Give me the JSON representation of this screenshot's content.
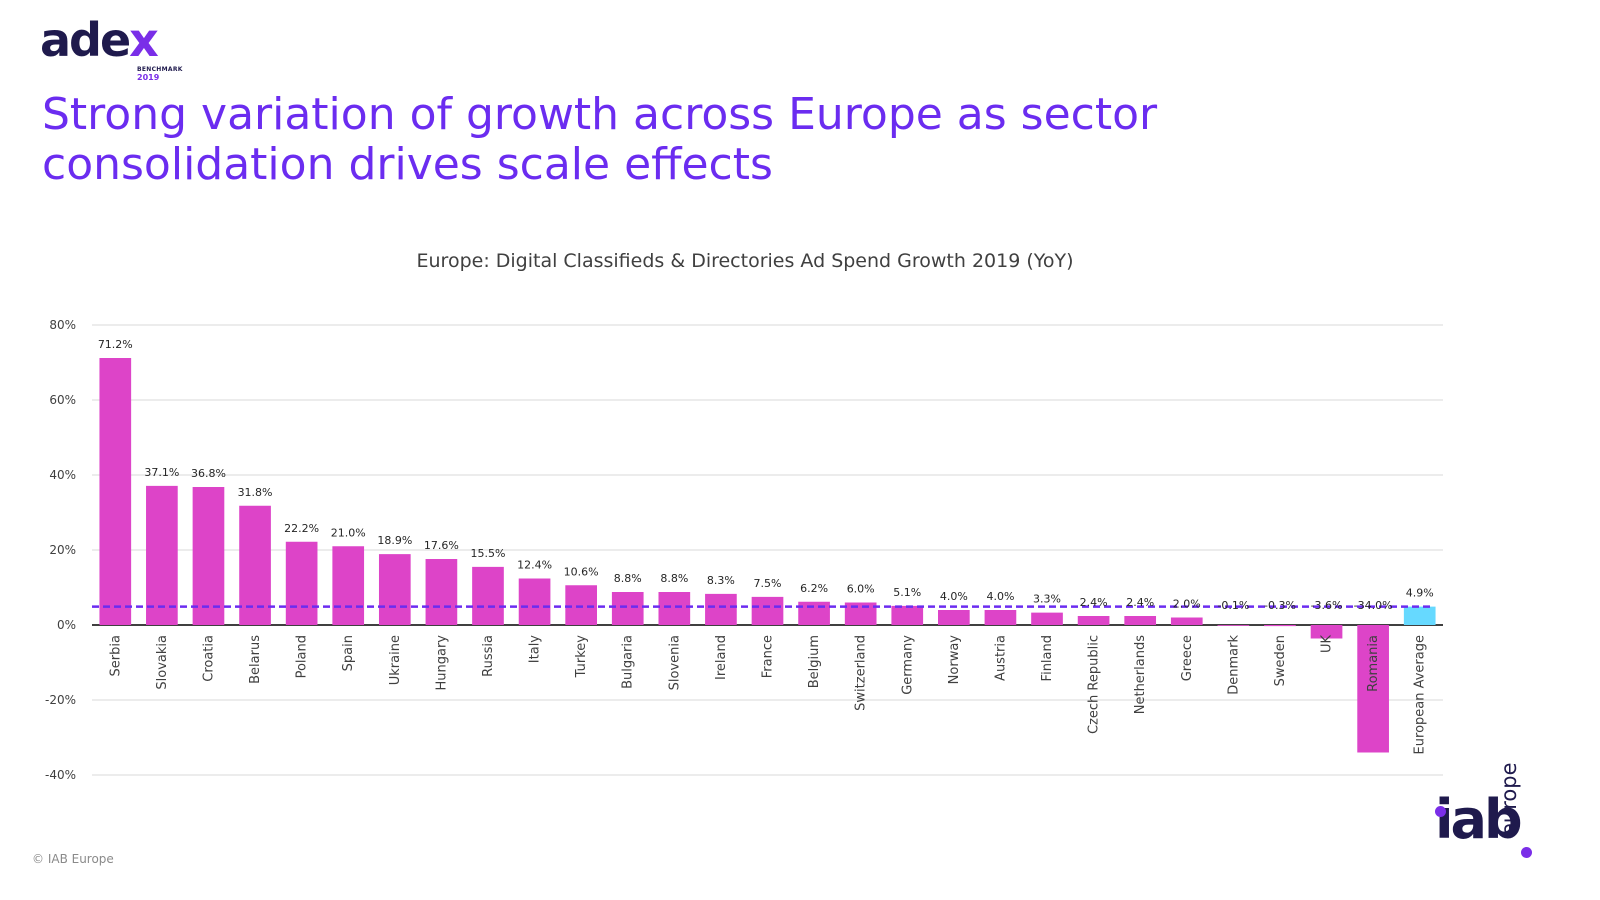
{
  "logo": {
    "word_main": "ade",
    "word_accent": "x",
    "sub_line1": "BENCHMARK",
    "sub_line2": "2019"
  },
  "slide": {
    "title_line1": "Strong variation of growth across Europe as sector",
    "title_line2": "consolidation drives scale effects",
    "copyright": "© IAB Europe"
  },
  "footer_logo": {
    "word": "iab",
    "europe": "europe"
  },
  "colors": {
    "bar": "#dd44c8",
    "average_bar": "#66d9ff",
    "average_line": "#6b2cf0",
    "grid": "#d9d9d9",
    "title": "#6b2cf0"
  },
  "chart_data": {
    "type": "bar",
    "title": "Europe: Digital Classifieds & Directories Ad Spend Growth 2019 (YoY)",
    "xlabel": "",
    "ylabel": "",
    "ylim": [
      -40,
      80
    ],
    "yticks": [
      80,
      60,
      40,
      20,
      0,
      -20,
      -40
    ],
    "ytick_labels": [
      "80%",
      "60%",
      "40%",
      "20%",
      "0%",
      "-20%",
      "-40%"
    ],
    "grid": true,
    "categories": [
      "Serbia",
      "Slovakia",
      "Croatia",
      "Belarus",
      "Poland",
      "Spain",
      "Ukraine",
      "Hungary",
      "Russia",
      "Italy",
      "Turkey",
      "Bulgaria",
      "Slovenia",
      "Ireland",
      "France",
      "Belgium",
      "Switzerland",
      "Germany",
      "Norway",
      "Austria",
      "Finland",
      "Czech Republic",
      "Netherlands",
      "Greece",
      "Denmark",
      "Sweden",
      "UK",
      "Romania",
      "European Average"
    ],
    "values": [
      71.2,
      37.1,
      36.8,
      31.8,
      22.2,
      21.0,
      18.9,
      17.6,
      15.5,
      12.4,
      10.6,
      8.8,
      8.8,
      8.3,
      7.5,
      6.2,
      6.0,
      5.1,
      4.0,
      4.0,
      3.3,
      2.4,
      2.4,
      2.0,
      -0.1,
      -0.3,
      -3.6,
      -34.0,
      4.9
    ],
    "data_labels": [
      "71.2%",
      "37.1%",
      "36.8%",
      "31.8%",
      "22.2%",
      "21.0%",
      "18.9%",
      "17.6%",
      "15.5%",
      "12.4%",
      "10.6%",
      "8.8%",
      "8.8%",
      "8.3%",
      "7.5%",
      "6.2%",
      "6.0%",
      "5.1%",
      "4.0%",
      "4.0%",
      "3.3%",
      "2.4%",
      "2.4%",
      "2.0%",
      "-0.1%",
      "-0.3%",
      "-3.6%",
      "-34.0%",
      "4.9%"
    ],
    "highlight_category": "European Average",
    "average_line_value": 4.9
  }
}
